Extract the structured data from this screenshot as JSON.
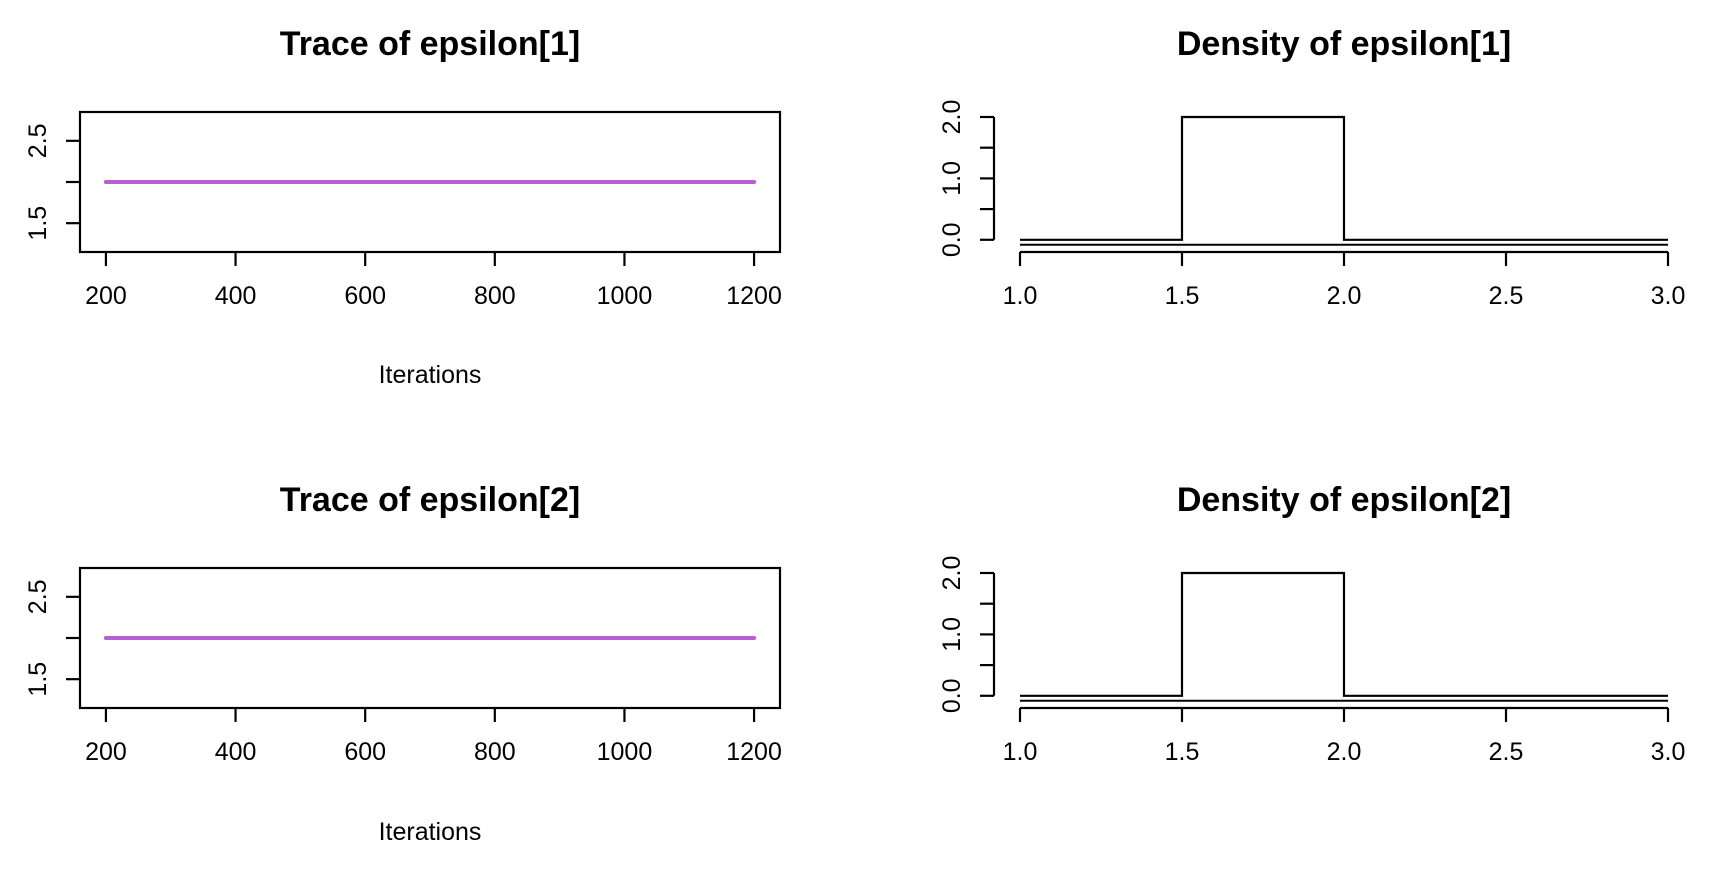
{
  "chart_data": [
    {
      "id": "trace1",
      "type": "line",
      "title": "Trace of epsilon[1]",
      "xlabel": "Iterations",
      "ylabel": "",
      "x": [
        200,
        1200
      ],
      "series": [
        {
          "values": [
            2,
            2
          ],
          "color": "#b95ed6"
        }
      ],
      "xlim": [
        160,
        1240
      ],
      "ylim": [
        1.15,
        2.85
      ],
      "xticks": [
        200,
        400,
        600,
        800,
        1000,
        1200
      ],
      "xtick_labels": [
        "200",
        "400",
        "600",
        "800",
        "1000",
        "1200"
      ],
      "yticks": [
        1.5,
        2.0,
        2.5
      ],
      "ytick_labels": [
        "1.5",
        "",
        "2.5"
      ],
      "grid": false
    },
    {
      "id": "density1",
      "type": "line",
      "title": "Density of epsilon[1]",
      "xlabel": "",
      "ylabel": "",
      "x": [
        1.0,
        1.5,
        1.5,
        2.0,
        2.0,
        3.0
      ],
      "series": [
        {
          "values": [
            0,
            0,
            2,
            2,
            0,
            0
          ],
          "color": "#000000"
        }
      ],
      "xlim": [
        1.0,
        3.0
      ],
      "ylim": [
        -0.15,
        2.0
      ],
      "xticks": [
        1.0,
        1.5,
        2.0,
        2.5,
        3.0
      ],
      "xtick_labels": [
        "1.0",
        "1.5",
        "2.0",
        "2.5",
        "3.0"
      ],
      "yticks": [
        0.0,
        0.5,
        1.0,
        1.5,
        2.0
      ],
      "ytick_labels": [
        "0.0",
        "",
        "1.0",
        "",
        "2.0"
      ],
      "grid": false
    },
    {
      "id": "trace2",
      "type": "line",
      "title": "Trace of epsilon[2]",
      "xlabel": "Iterations",
      "ylabel": "",
      "x": [
        200,
        1200
      ],
      "series": [
        {
          "values": [
            2,
            2
          ],
          "color": "#b95ed6"
        }
      ],
      "xlim": [
        160,
        1240
      ],
      "ylim": [
        1.15,
        2.85
      ],
      "xticks": [
        200,
        400,
        600,
        800,
        1000,
        1200
      ],
      "xtick_labels": [
        "200",
        "400",
        "600",
        "800",
        "1000",
        "1200"
      ],
      "yticks": [
        1.5,
        2.0,
        2.5
      ],
      "ytick_labels": [
        "1.5",
        "",
        "2.5"
      ],
      "grid": false
    },
    {
      "id": "density2",
      "type": "line",
      "title": "Density of epsilon[2]",
      "xlabel": "",
      "ylabel": "",
      "x": [
        1.0,
        1.5,
        1.5,
        2.0,
        2.0,
        3.0
      ],
      "series": [
        {
          "values": [
            0,
            0,
            2,
            2,
            0,
            0
          ],
          "color": "#000000"
        }
      ],
      "xlim": [
        1.0,
        3.0
      ],
      "ylim": [
        -0.15,
        2.0
      ],
      "xticks": [
        1.0,
        1.5,
        2.0,
        2.5,
        3.0
      ],
      "xtick_labels": [
        "1.0",
        "1.5",
        "2.0",
        "2.5",
        "3.0"
      ],
      "yticks": [
        0.0,
        0.5,
        1.0,
        1.5,
        2.0
      ],
      "ytick_labels": [
        "0.0",
        "",
        "1.0",
        "",
        "2.0"
      ],
      "grid": false
    }
  ]
}
